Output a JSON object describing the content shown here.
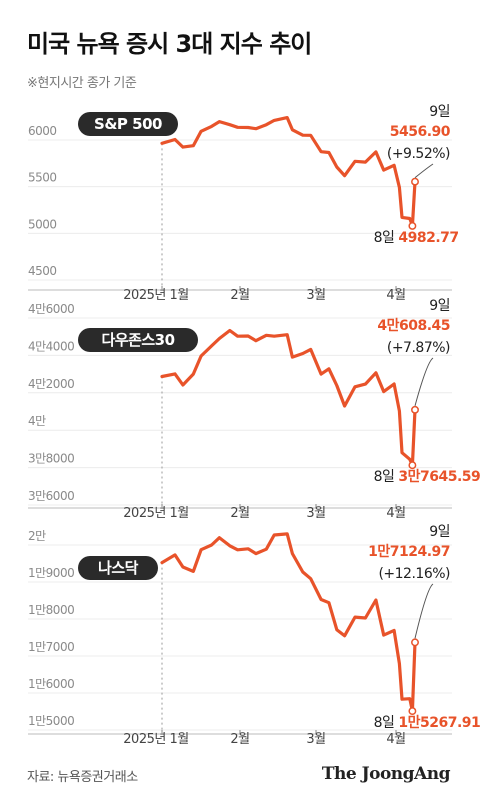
{
  "header": {
    "title": "미국 뉴욕 증시 3대 지수 추이",
    "subtitle": "※현지시간 종가 기준"
  },
  "footer": {
    "source": "자료: 뉴욕증권거래소",
    "brand": "The JoongAng"
  },
  "colors": {
    "line": "#e8532a",
    "badge": "#2a2a2a",
    "accent": "#e8532a"
  },
  "chart_data": [
    {
      "type": "line",
      "title": "S&P 500",
      "x_tick_labels": [
        "2025년 1월",
        "2월",
        "3월",
        "4월"
      ],
      "y_ticks": [
        4500,
        5000,
        5500,
        6000
      ],
      "y_tick_labels": [
        "4500",
        "5000",
        "5500",
        "6000"
      ],
      "ylim": [
        4500,
        6200
      ],
      "x_dates": [
        "2025-01-02",
        "2025-01-07",
        "2025-01-10",
        "2025-01-14",
        "2025-01-17",
        "2025-01-21",
        "2025-01-24",
        "2025-01-28",
        "2025-01-31",
        "2025-02-04",
        "2025-02-07",
        "2025-02-11",
        "2025-02-14",
        "2025-02-19",
        "2025-02-21",
        "2025-02-25",
        "2025-02-28",
        "2025-03-04",
        "2025-03-07",
        "2025-03-10",
        "2025-03-13",
        "2025-03-17",
        "2025-03-21",
        "2025-03-25",
        "2025-03-28",
        "2025-04-01",
        "2025-04-03",
        "2025-04-04",
        "2025-04-07",
        "2025-04-08",
        "2025-04-09"
      ],
      "values": [
        5868,
        5909,
        5827,
        5842,
        5997,
        6049,
        6101,
        6067,
        6040,
        6037,
        6025,
        6068,
        6114,
        6144,
        6013,
        5955,
        5954,
        5778,
        5770,
        5614,
        5521,
        5675,
        5667,
        5776,
        5581,
        5633,
        5396,
        5074,
        5062,
        4982.77,
        5456.9
      ],
      "annotations": {
        "end_label": "9일",
        "end_value": "5456.90",
        "end_change": "(+9.52%)",
        "low_label": "8일",
        "low_value": "4982.77"
      }
    },
    {
      "type": "line",
      "title": "다우존스30",
      "x_tick_labels": [
        "2025년 1월",
        "2월",
        "3월",
        "4월"
      ],
      "y_ticks": [
        36000,
        38000,
        40000,
        42000,
        44000,
        46000
      ],
      "y_tick_labels": [
        "3만6000",
        "3만8000",
        "4만",
        "4만2000",
        "4만4000",
        "4만6000"
      ],
      "ylim": [
        36000,
        46000
      ],
      "x_dates": [
        "2025-01-02",
        "2025-01-07",
        "2025-01-10",
        "2025-01-14",
        "2025-01-17",
        "2025-01-21",
        "2025-01-24",
        "2025-01-28",
        "2025-01-31",
        "2025-02-04",
        "2025-02-07",
        "2025-02-11",
        "2025-02-14",
        "2025-02-19",
        "2025-02-21",
        "2025-02-25",
        "2025-02-28",
        "2025-03-04",
        "2025-03-07",
        "2025-03-10",
        "2025-03-13",
        "2025-03-17",
        "2025-03-21",
        "2025-03-25",
        "2025-03-28",
        "2025-04-01",
        "2025-04-03",
        "2025-04-04",
        "2025-04-07",
        "2025-04-08",
        "2025-04-09"
      ],
      "values": [
        42392,
        42528,
        41938,
        42518,
        43488,
        44025,
        44424,
        44850,
        44544,
        44556,
        44303,
        44593,
        44546,
        44628,
        43428,
        43621,
        43840,
        42520,
        42801,
        41911,
        40813,
        41841,
        41985,
        42587,
        41583,
        41989,
        40545,
        38314,
        37965,
        37645.59,
        40608.45
      ],
      "annotations": {
        "end_label": "9일",
        "end_value": "4만608.45",
        "end_change": "(+7.87%)",
        "low_label": "8일",
        "low_value": "3만7645.59"
      }
    },
    {
      "type": "line",
      "title": "나스닥",
      "x_tick_labels": [
        "2025년 1월",
        "2월",
        "3월",
        "4월"
      ],
      "y_ticks": [
        15000,
        16000,
        17000,
        18000,
        19000,
        20000
      ],
      "y_tick_labels": [
        "1만5000",
        "1만6000",
        "1만7000",
        "1만8000",
        "1만9000",
        "2만"
      ],
      "ylim": [
        15000,
        20000
      ],
      "x_dates": [
        "2025-01-02",
        "2025-01-07",
        "2025-01-10",
        "2025-01-14",
        "2025-01-17",
        "2025-01-21",
        "2025-01-24",
        "2025-01-28",
        "2025-01-31",
        "2025-02-04",
        "2025-02-07",
        "2025-02-11",
        "2025-02-14",
        "2025-02-19",
        "2025-02-21",
        "2025-02-25",
        "2025-02-28",
        "2025-03-04",
        "2025-03-07",
        "2025-03-10",
        "2025-03-13",
        "2025-03-17",
        "2025-03-21",
        "2025-03-25",
        "2025-03-28",
        "2025-04-01",
        "2025-04-03",
        "2025-04-04",
        "2025-04-07",
        "2025-04-08",
        "2025-04-09"
      ],
      "values": [
        19280,
        19490,
        19161,
        19044,
        19630,
        19757,
        19954,
        19734,
        19627,
        19654,
        19523,
        19643,
        20026,
        20056,
        19524,
        19026,
        18847,
        18285,
        18196,
        17468,
        17303,
        17808,
        17784,
        18271,
        17322,
        17449,
        16550,
        15588,
        15603,
        15267.91,
        17124.97
      ],
      "annotations": {
        "end_label": "9일",
        "end_value": "1만7124.97",
        "end_change": "(+12.16%)",
        "low_label": "8일",
        "low_value": "1만5267.91"
      }
    }
  ]
}
